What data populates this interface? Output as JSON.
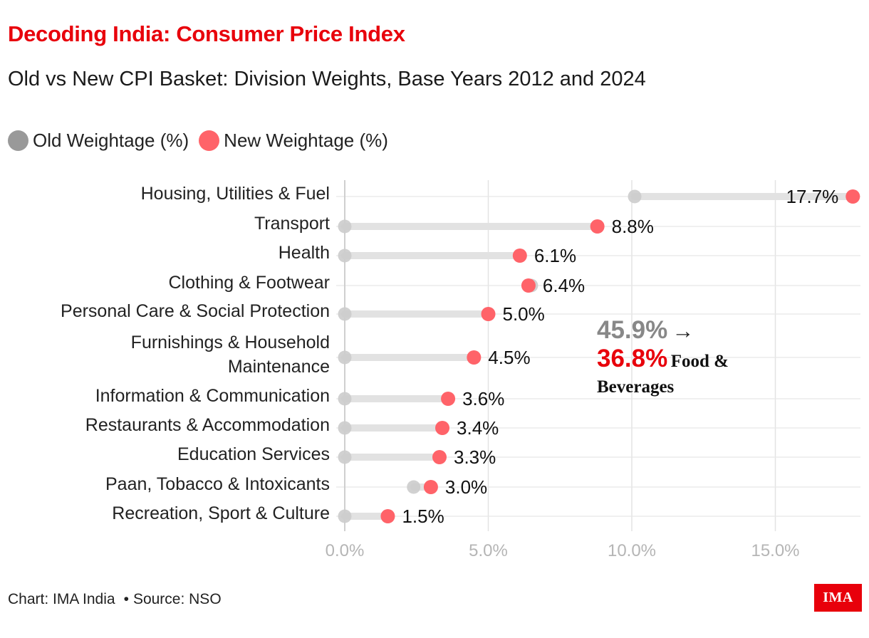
{
  "title": "Decoding India: Consumer Price Index",
  "subtitle": "Old vs New CPI Basket: Division Weights, Base Years 2012 and 2024",
  "legend": {
    "old_label": "Old Weightage (%)",
    "new_label": "New Weightage (%)",
    "old_color": "#999999",
    "new_color": "#ff6369"
  },
  "annotation": {
    "old_value": "45.9%",
    "arrow": "→",
    "new_value": "36.8%",
    "text_line1": "Food &",
    "text_line2": "Beverages"
  },
  "footer": {
    "chart_credit": "Chart: IMA India",
    "bullet": "•",
    "source": "Source: NSO"
  },
  "logo_text": "IMA",
  "chart_data": {
    "type": "dumbbell",
    "categories": [
      "Housing, Utilities & Fuel",
      "Transport",
      "Health",
      "Clothing & Footwear",
      "Personal Care & Social Protection",
      "Furnishings & Household Maintenance",
      "Information & Communication",
      "Restaurants & Accommodation",
      "Education Services",
      "Paan, Tobacco & Intoxicants",
      "Recreation, Sport & Culture"
    ],
    "series": [
      {
        "name": "Old Weightage (%)",
        "values": [
          10.1,
          0,
          0,
          6.5,
          0,
          0,
          0,
          0,
          0,
          2.4,
          0
        ]
      },
      {
        "name": "New Weightage (%)",
        "values": [
          17.7,
          8.8,
          6.1,
          6.4,
          5.0,
          4.5,
          3.6,
          3.4,
          3.3,
          3.0,
          1.5
        ]
      }
    ],
    "data_labels": [
      "17.7%",
      "8.8%",
      "6.1%",
      "6.4%",
      "5.0%",
      "4.5%",
      "3.6%",
      "3.4%",
      "3.3%",
      "3.0%",
      "1.5%"
    ],
    "x_ticks": [
      "0.0%",
      "5.0%",
      "10.0%",
      "15.0%"
    ],
    "x_tick_values": [
      0,
      5,
      10,
      15
    ],
    "xlim": [
      0,
      18
    ],
    "grid": true,
    "legend_position": "top-left"
  }
}
